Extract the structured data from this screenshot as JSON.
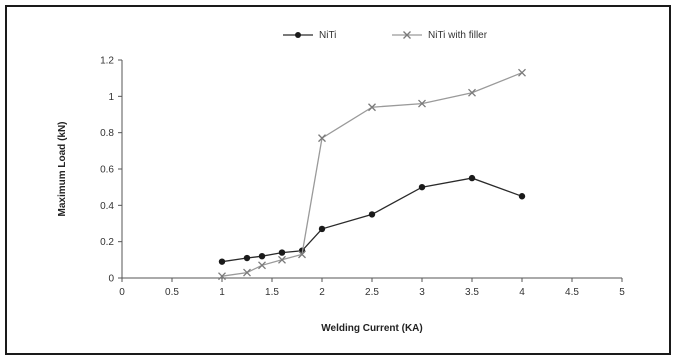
{
  "chart_data": {
    "type": "line",
    "title": "",
    "xlabel": "Welding Current (KA)",
    "ylabel": "Maximum Load (kN)",
    "xlim": [
      0,
      5
    ],
    "ylim": [
      0,
      1.2
    ],
    "x_ticks": [
      "0",
      "0.5",
      "1",
      "1.5",
      "2",
      "2.5",
      "3",
      "3.5",
      "4",
      "4.5",
      "5"
    ],
    "y_ticks": [
      "0",
      "0.2",
      "0.4",
      "0.6",
      "0.8",
      "1",
      "1.2"
    ],
    "grid": false,
    "legend_position": "top",
    "series": [
      {
        "name": "NiTi",
        "marker": "circle",
        "color": "#2a2a2a",
        "x": [
          1.0,
          1.25,
          1.4,
          1.6,
          1.8,
          2.0,
          2.5,
          3.0,
          3.5,
          4.0
        ],
        "y": [
          0.09,
          0.11,
          0.12,
          0.14,
          0.15,
          0.27,
          0.35,
          0.5,
          0.55,
          0.45
        ]
      },
      {
        "name": "NiTi with filler",
        "marker": "x",
        "color": "#9a9a9a",
        "x": [
          1.0,
          1.25,
          1.4,
          1.6,
          1.8,
          2.0,
          2.5,
          3.0,
          3.5,
          4.0
        ],
        "y": [
          0.01,
          0.03,
          0.07,
          0.1,
          0.13,
          0.77,
          0.94,
          0.96,
          1.02,
          1.13
        ]
      }
    ]
  }
}
